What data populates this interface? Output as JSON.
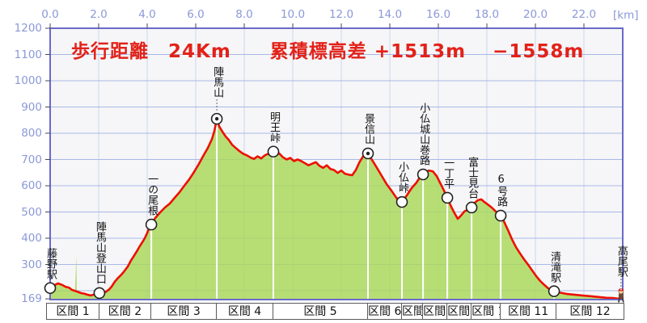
{
  "chart_data": {
    "type": "area",
    "title": "歩行距離　24Km　　累積標高差 +1513m　 −1558m",
    "stats": {
      "walk_distance": "24Km",
      "cumulative_ascent": "+1513m",
      "cumulative_descent": "−1558m"
    },
    "x_axis": {
      "unit_label": "[km]",
      "ticks": [
        "0.0",
        "2.0",
        "4.0",
        "6.0",
        "8.0",
        "10.0",
        "12.0",
        "14.0",
        "16.0",
        "18.0",
        "20.0",
        "22.0"
      ],
      "tick_values_km": [
        0,
        2,
        4,
        6,
        8,
        10,
        12,
        14,
        16,
        18,
        20,
        22
      ],
      "range_km": [
        0,
        23.6
      ],
      "grid": true
    },
    "y_axis": {
      "ticks": [
        1200,
        1100,
        1000,
        900,
        800,
        700,
        600,
        500,
        400,
        300,
        169
      ],
      "gridline_values": [
        1100,
        1000,
        900,
        800,
        700,
        600,
        500,
        400,
        300,
        200
      ],
      "range_m": [
        169,
        1200
      ],
      "grid": true
    },
    "profile_km_m": [
      [
        0,
        210
      ],
      [
        0.17,
        221
      ],
      [
        0.33,
        228
      ],
      [
        0.5,
        222
      ],
      [
        0.63,
        215
      ],
      [
        0.77,
        212
      ],
      [
        0.9,
        203
      ],
      [
        1.1,
        197
      ],
      [
        1.27,
        191
      ],
      [
        1.43,
        188
      ],
      [
        1.57,
        184
      ],
      [
        1.67,
        182
      ],
      [
        1.8,
        185
      ],
      [
        1.93,
        188
      ],
      [
        2.03,
        191
      ],
      [
        2.17,
        192
      ],
      [
        2.27,
        194
      ],
      [
        2.43,
        205
      ],
      [
        2.53,
        215
      ],
      [
        2.67,
        235
      ],
      [
        2.77,
        246
      ],
      [
        2.9,
        258
      ],
      [
        3.0,
        268
      ],
      [
        3.1,
        280
      ],
      [
        3.2,
        292
      ],
      [
        3.33,
        315
      ],
      [
        3.43,
        329
      ],
      [
        3.57,
        350
      ],
      [
        3.67,
        366
      ],
      [
        3.8,
        385
      ],
      [
        3.9,
        400
      ],
      [
        4.0,
        420
      ],
      [
        4.07,
        437
      ],
      [
        4.17,
        452
      ],
      [
        4.33,
        477
      ],
      [
        4.53,
        498
      ],
      [
        4.73,
        517
      ],
      [
        4.93,
        532
      ],
      [
        5.13,
        554
      ],
      [
        5.33,
        575
      ],
      [
        5.53,
        600
      ],
      [
        5.73,
        624
      ],
      [
        5.93,
        652
      ],
      [
        6.13,
        683
      ],
      [
        6.33,
        717
      ],
      [
        6.5,
        744
      ],
      [
        6.67,
        778
      ],
      [
        6.77,
        809
      ],
      [
        6.87,
        855
      ],
      [
        6.97,
        826
      ],
      [
        7.1,
        806
      ],
      [
        7.25,
        786
      ],
      [
        7.35,
        776
      ],
      [
        7.5,
        756
      ],
      [
        7.65,
        744
      ],
      [
        7.8,
        732
      ],
      [
        7.95,
        722
      ],
      [
        8.1,
        716
      ],
      [
        8.25,
        708
      ],
      [
        8.4,
        702
      ],
      [
        8.55,
        712
      ],
      [
        8.7,
        704
      ],
      [
        8.85,
        716
      ],
      [
        9.0,
        722
      ],
      [
        9.1,
        726
      ],
      [
        9.2,
        730
      ],
      [
        9.3,
        733
      ],
      [
        9.45,
        722
      ],
      [
        9.6,
        708
      ],
      [
        9.75,
        700
      ],
      [
        9.9,
        706
      ],
      [
        10.05,
        694
      ],
      [
        10.2,
        700
      ],
      [
        10.35,
        694
      ],
      [
        10.5,
        686
      ],
      [
        10.65,
        678
      ],
      [
        10.8,
        684
      ],
      [
        10.95,
        690
      ],
      [
        11.1,
        676
      ],
      [
        11.25,
        668
      ],
      [
        11.4,
        678
      ],
      [
        11.55,
        664
      ],
      [
        11.7,
        660
      ],
      [
        11.85,
        649
      ],
      [
        12.0,
        658
      ],
      [
        12.15,
        646
      ],
      [
        12.3,
        642
      ],
      [
        12.45,
        640
      ],
      [
        12.6,
        660
      ],
      [
        12.75,
        690
      ],
      [
        12.9,
        712
      ],
      [
        13.0,
        718
      ],
      [
        13.1,
        723
      ],
      [
        13.27,
        698
      ],
      [
        13.47,
        668
      ],
      [
        13.67,
        637
      ],
      [
        13.87,
        606
      ],
      [
        14.07,
        581
      ],
      [
        14.27,
        554
      ],
      [
        14.43,
        540
      ],
      [
        14.5,
        538
      ],
      [
        14.7,
        563
      ],
      [
        14.9,
        591
      ],
      [
        15.1,
        612
      ],
      [
        15.27,
        637
      ],
      [
        15.37,
        643
      ],
      [
        15.6,
        658
      ],
      [
        15.77,
        655
      ],
      [
        15.93,
        637
      ],
      [
        16.1,
        606
      ],
      [
        16.23,
        582
      ],
      [
        16.37,
        554
      ],
      [
        16.53,
        520
      ],
      [
        16.67,
        495
      ],
      [
        16.8,
        474
      ],
      [
        16.93,
        486
      ],
      [
        17.07,
        502
      ],
      [
        17.2,
        508
      ],
      [
        17.37,
        517
      ],
      [
        17.5,
        535
      ],
      [
        17.63,
        545
      ],
      [
        17.77,
        548
      ],
      [
        17.9,
        538
      ],
      [
        18.03,
        529
      ],
      [
        18.2,
        517
      ],
      [
        18.37,
        502
      ],
      [
        18.57,
        486
      ],
      [
        18.7,
        465
      ],
      [
        18.87,
        431
      ],
      [
        19.03,
        397
      ],
      [
        19.2,
        366
      ],
      [
        19.37,
        342
      ],
      [
        19.53,
        320
      ],
      [
        19.7,
        299
      ],
      [
        19.87,
        277
      ],
      [
        20.03,
        256
      ],
      [
        20.2,
        237
      ],
      [
        20.37,
        222
      ],
      [
        20.53,
        209
      ],
      [
        20.67,
        200
      ],
      [
        20.77,
        198
      ],
      [
        20.93,
        194
      ],
      [
        21.27,
        188
      ],
      [
        21.6,
        185
      ],
      [
        21.93,
        182
      ],
      [
        22.27,
        179
      ],
      [
        22.6,
        176
      ],
      [
        22.93,
        173
      ],
      [
        23.2,
        172
      ],
      [
        23.4,
        170
      ],
      [
        23.53,
        171
      ]
    ],
    "fill_spike_km_m": [
      [
        1.02,
        196
      ],
      [
        1.08,
        335
      ],
      [
        1.14,
        193
      ]
    ],
    "markers": [
      {
        "label": "藤野駅",
        "km": 0.0,
        "elev_m": 210,
        "type": "circle",
        "leader": false
      },
      {
        "label": "陣馬山登山口",
        "km": 2.03,
        "elev_m": 191,
        "type": "circle",
        "leader": false
      },
      {
        "label": "一の尾根",
        "km": 4.17,
        "elev_m": 452,
        "type": "circle",
        "leader": false
      },
      {
        "label": "陣馬山",
        "km": 6.87,
        "elev_m": 855,
        "type": "summit",
        "leader": true
      },
      {
        "label": "明王峠",
        "km": 9.2,
        "elev_m": 730,
        "type": "circle",
        "leader": false
      },
      {
        "label": "景信山",
        "km": 13.1,
        "elev_m": 723,
        "type": "summit",
        "leader": false
      },
      {
        "label": "小仏峠",
        "km": 14.5,
        "elev_m": 538,
        "type": "circle",
        "leader": false
      },
      {
        "label": "小仏城山巻路",
        "km": 15.37,
        "elev_m": 643,
        "type": "circle",
        "leader": false
      },
      {
        "label": "一丁平",
        "km": 16.37,
        "elev_m": 554,
        "type": "circle",
        "leader": false
      },
      {
        "label": "富士見台",
        "km": 17.37,
        "elev_m": 517,
        "type": "circle",
        "leader": false
      },
      {
        "label": "6号路",
        "km": 18.57,
        "elev_m": 486,
        "type": "circle",
        "leader": false
      },
      {
        "label": "清滝駅",
        "km": 20.77,
        "elev_m": 198,
        "type": "circle",
        "leader": false
      },
      {
        "label": "高尾駅",
        "km": 23.53,
        "elev_m": 171,
        "type": "hiker",
        "leader": true
      }
    ],
    "sections": {
      "boundaries_km": [
        -0.13,
        2.03,
        4.17,
        6.87,
        9.2,
        13.1,
        14.5,
        15.37,
        16.37,
        17.37,
        18.57,
        20.87,
        23.67
      ],
      "labels": [
        "区間 1",
        "区間 2",
        "区間 3",
        "区間 4",
        "区間 5",
        "区間 6",
        "区間 7",
        "区間 8",
        "区間 9",
        "区間 10",
        "区間 11",
        "区間 12"
      ]
    }
  },
  "colors": {
    "background": "#ffffff",
    "plot_bg": "#f6f6f8",
    "frame": "#6b6bc8",
    "grid_h": "#a9b8e6",
    "grid_v": "#ccd6ee",
    "area_fill": "#a8d858",
    "line": "#ee1000",
    "axis_text": "#8b98d8",
    "title_text": "#e22219",
    "marker_stroke": "#222222",
    "section_line": "#ffffff",
    "tick": "#444455"
  }
}
